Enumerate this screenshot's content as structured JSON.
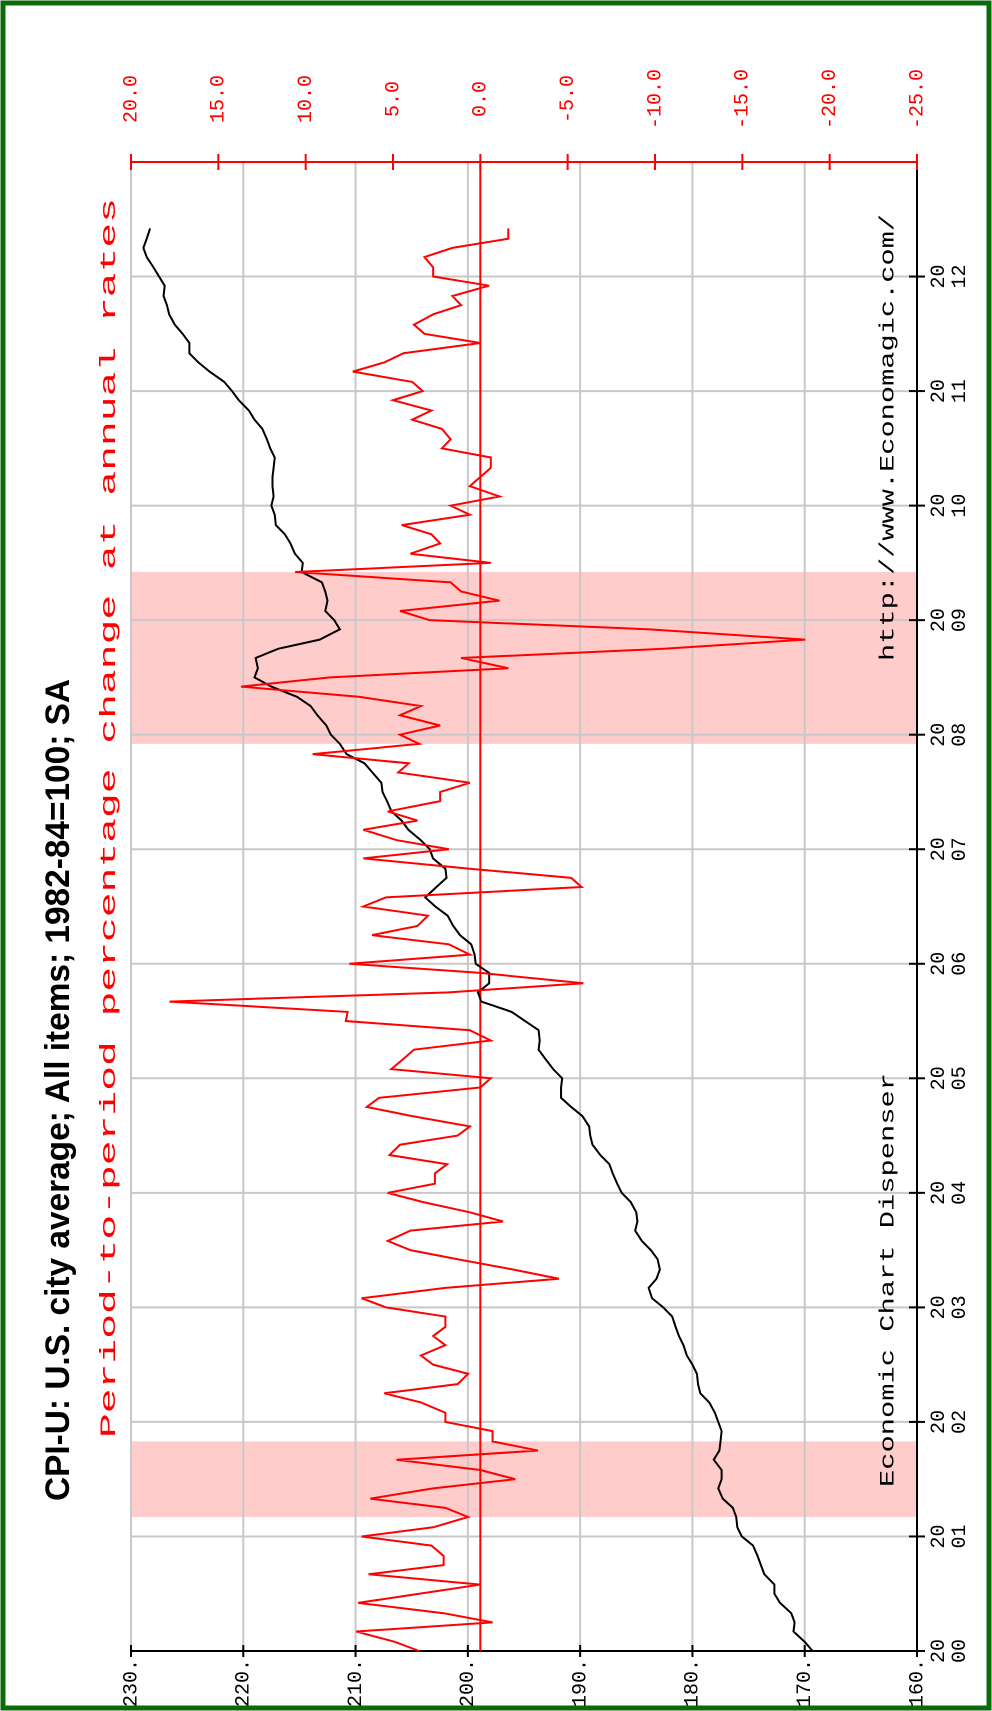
{
  "chart_data": {
    "type": "line",
    "title": "CPI-U: U.S. city average; All items; 1982-84=100; SA",
    "subtitle": "Period-to-period percentage change at annual rates",
    "annotations": [
      "Economic Chart Dispenser",
      "http://www.Economagic.com/"
    ],
    "x": [
      2000.0,
      2000.08,
      2000.17,
      2000.25,
      2000.33,
      2000.42,
      2000.5,
      2000.58,
      2000.67,
      2000.75,
      2000.83,
      2000.92,
      2001.0,
      2001.08,
      2001.17,
      2001.25,
      2001.33,
      2001.42,
      2001.5,
      2001.58,
      2001.67,
      2001.75,
      2001.83,
      2001.92,
      2002.0,
      2002.08,
      2002.17,
      2002.25,
      2002.33,
      2002.42,
      2002.5,
      2002.58,
      2002.67,
      2002.75,
      2002.83,
      2002.92,
      2003.0,
      2003.08,
      2003.17,
      2003.25,
      2003.33,
      2003.42,
      2003.5,
      2003.58,
      2003.67,
      2003.75,
      2003.83,
      2003.92,
      2004.0,
      2004.08,
      2004.17,
      2004.25,
      2004.33,
      2004.42,
      2004.5,
      2004.58,
      2004.67,
      2004.75,
      2004.83,
      2004.92,
      2005.0,
      2005.08,
      2005.17,
      2005.25,
      2005.33,
      2005.42,
      2005.5,
      2005.58,
      2005.67,
      2005.75,
      2005.83,
      2005.92,
      2006.0,
      2006.08,
      2006.17,
      2006.25,
      2006.33,
      2006.42,
      2006.5,
      2006.58,
      2006.67,
      2006.75,
      2006.83,
      2006.92,
      2007.0,
      2007.08,
      2007.17,
      2007.25,
      2007.33,
      2007.42,
      2007.5,
      2007.58,
      2007.67,
      2007.75,
      2007.83,
      2007.92,
      2008.0,
      2008.08,
      2008.17,
      2008.25,
      2008.33,
      2008.42,
      2008.5,
      2008.58,
      2008.67,
      2008.75,
      2008.83,
      2008.92,
      2009.0,
      2009.08,
      2009.17,
      2009.25,
      2009.33,
      2009.42,
      2009.5,
      2009.58,
      2009.67,
      2009.75,
      2009.83,
      2009.92,
      2010.0,
      2010.08,
      2010.17,
      2010.25,
      2010.33,
      2010.42,
      2010.5,
      2010.58,
      2010.67,
      2010.75,
      2010.83,
      2010.92,
      2011.0,
      2011.08,
      2011.17,
      2011.25,
      2011.33,
      2011.42,
      2011.5,
      2011.58,
      2011.67,
      2011.75,
      2011.83,
      2011.92,
      2012.0,
      2012.08,
      2012.17,
      2012.25,
      2012.33,
      2012.42
    ],
    "series": [
      {
        "color": "#000000",
        "axis": "y",
        "values": [
          169.3,
          170.0,
          171.0,
          170.9,
          171.2,
          172.2,
          172.7,
          172.7,
          173.6,
          173.9,
          174.2,
          174.6,
          175.6,
          176.0,
          176.1,
          176.4,
          177.3,
          177.7,
          177.4,
          177.4,
          178.1,
          177.6,
          177.5,
          177.4,
          177.7,
          178.0,
          178.5,
          179.3,
          179.5,
          179.6,
          180.0,
          180.5,
          180.8,
          181.2,
          181.5,
          181.8,
          182.6,
          183.6,
          183.9,
          183.2,
          182.9,
          183.1,
          183.7,
          184.5,
          185.1,
          184.9,
          185.0,
          185.5,
          186.3,
          186.7,
          187.1,
          187.4,
          188.2,
          188.9,
          189.1,
          189.2,
          189.8,
          190.8,
          191.7,
          191.7,
          191.6,
          192.4,
          193.1,
          193.7,
          193.6,
          193.7,
          194.9,
          196.1,
          198.8,
          199.1,
          198.1,
          198.1,
          199.3,
          199.4,
          199.7,
          200.7,
          201.3,
          201.8,
          202.9,
          203.8,
          202.8,
          201.9,
          202.0,
          203.1,
          203.4,
          204.2,
          205.3,
          205.9,
          206.8,
          207.2,
          207.6,
          207.7,
          208.5,
          209.2,
          210.8,
          211.4,
          212.2,
          212.6,
          213.4,
          214.0,
          215.2,
          217.5,
          219.0,
          218.7,
          218.9,
          216.9,
          213.2,
          211.4,
          211.9,
          212.7,
          212.5,
          212.7,
          213.0,
          214.8,
          214.7,
          215.4,
          215.8,
          216.3,
          217.1,
          217.2,
          217.5,
          217.3,
          217.4,
          217.4,
          217.3,
          217.2,
          217.6,
          217.9,
          218.3,
          219.0,
          219.5,
          220.4,
          221.0,
          221.7,
          223.0,
          224.0,
          224.8,
          224.8,
          225.4,
          226.1,
          226.6,
          226.8,
          227.1,
          227.0,
          227.5,
          228.0,
          228.6,
          228.9,
          228.6,
          228.3
        ]
      },
      {
        "color": "#ff0000",
        "axis": "y2",
        "values": [
          3.5,
          4.9,
          7.1,
          -0.7,
          2.1,
          7.0,
          3.5,
          0,
          6.4,
          2.1,
          2.1,
          2.8,
          6.8,
          2.7,
          0.7,
          2.0,
          6.3,
          2.7,
          -2.0,
          0,
          4.8,
          -3.3,
          -0.7,
          -0.7,
          2.0,
          2.0,
          3.4,
          5.5,
          1.3,
          0.7,
          2.7,
          3.4,
          2.0,
          2.7,
          2.0,
          2.0,
          5.4,
          6.8,
          2.0,
          -4.5,
          -1.9,
          1.3,
          4.0,
          5.3,
          4.0,
          -1.3,
          0.6,
          3.3,
          5.3,
          2.6,
          2.6,
          1.9,
          5.2,
          4.6,
          1.3,
          0.6,
          3.9,
          6.5,
          5.8,
          0,
          -0.6,
          5.1,
          4.4,
          3.8,
          -0.6,
          0.6,
          7.7,
          7.6,
          17.8,
          1.8,
          -5.9,
          0,
          7.5,
          0.6,
          1.8,
          6.2,
          3.6,
          3.0,
          6.7,
          5.4,
          -5.8,
          -5.2,
          0.6,
          6.7,
          1.8,
          4.8,
          6.7,
          3.6,
          5.3,
          2.3,
          2.3,
          0.6,
          4.7,
          4.1,
          9.6,
          3.5,
          4.6,
          2.3,
          4.6,
          3.4,
          6.9,
          13.7,
          8.6,
          -1.6,
          1.1,
          -10.5,
          -18.6,
          -9.7,
          2.9,
          4.6,
          -1.1,
          1.1,
          1.7,
          10.6,
          -0.6,
          4.0,
          2.3,
          2.8,
          4.5,
          0.6,
          1.7,
          -1.1,
          0.6,
          0,
          -0.6,
          -0.6,
          2.2,
          1.7,
          2.2,
          3.9,
          2.8,
          5.0,
          3.3,
          3.9,
          7.3,
          5.5,
          4.4,
          0,
          3.2,
          3.8,
          2.7,
          1.1,
          1.6,
          -0.5,
          2.7,
          2.7,
          3.2,
          1.6,
          -1.6,
          -1.6
        ]
      }
    ],
    "shaded_regions": [
      [
        2001.17,
        2001.83
      ],
      [
        2007.92,
        2009.42
      ]
    ],
    "shade_color": "#ffcccc",
    "xlim": [
      2000,
      2013
    ],
    "xticks": [
      2000,
      2001,
      2002,
      2003,
      2004,
      2005,
      2006,
      2007,
      2008,
      2009,
      2010,
      2011,
      2012
    ],
    "ylim": [
      160,
      230
    ],
    "yticks": [
      {
        "value": 230,
        "label": "230."
      },
      {
        "value": 220,
        "label": "220."
      },
      {
        "value": 210,
        "label": "210."
      },
      {
        "value": 200,
        "label": "200."
      },
      {
        "value": 190,
        "label": "190."
      },
      {
        "value": 180,
        "label": "180."
      },
      {
        "value": 170,
        "label": "170."
      },
      {
        "value": 160,
        "label": "160."
      }
    ],
    "y2lim": [
      -25,
      20
    ],
    "y2ticks": [
      {
        "value": 20,
        "label": "20.0"
      },
      {
        "value": 15,
        "label": "15.0"
      },
      {
        "value": 10,
        "label": "10.0"
      },
      {
        "value": 5,
        "label": "5.0"
      },
      {
        "value": 0,
        "label": "0.0"
      },
      {
        "value": -5,
        "label": "-5.0"
      },
      {
        "value": -10,
        "label": "-10.0"
      },
      {
        "value": -15,
        "label": "-15.0"
      },
      {
        "value": -20,
        "label": "-20.0"
      },
      {
        "value": -25,
        "label": "-25.0"
      }
    ],
    "grid": true
  }
}
